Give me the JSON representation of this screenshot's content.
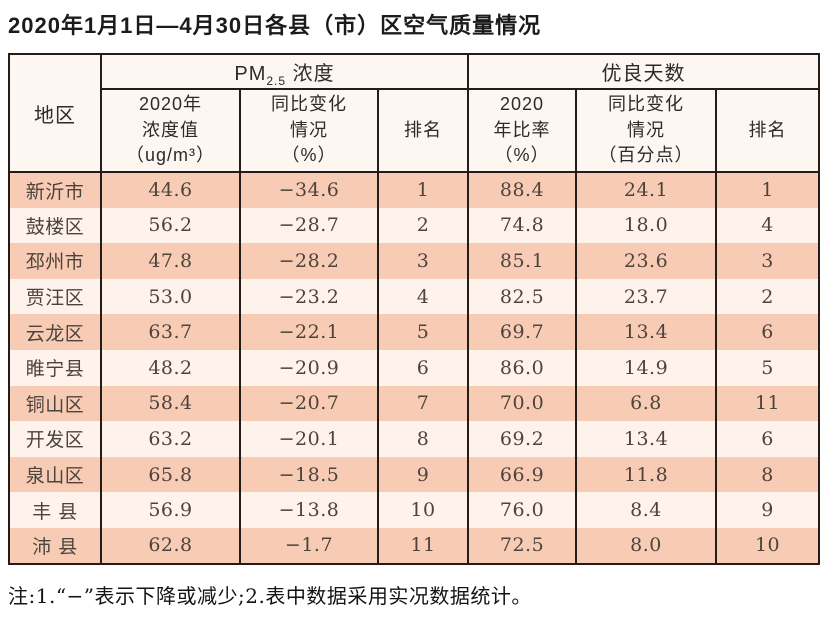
{
  "title": "2020年1月1日—4月30日各县（市）区空气质量情况",
  "footnote": "注:1.“−”表示下降或减少;2.表中数据采用实况数据统计。",
  "colors": {
    "border": "#241c18",
    "stripe_peach": "#f8ccb4",
    "stripe_cream": "#fdf3ec",
    "header_bg": "#fdf6f1",
    "cell_text": "#4d433d"
  },
  "table": {
    "region_header": "地区",
    "pm_group": {
      "prefix": "PM",
      "sub": "2.5",
      "suffix": " 浓度"
    },
    "good_group": "优良天数",
    "subheaders": {
      "pm_value": "2020年\n浓度值\n（ug/m³）",
      "pm_change": "同比变化\n情况\n（%）",
      "pm_rank": "排名",
      "good_ratio": "2020\n年比率\n（%）",
      "good_change": "同比变化\n情况\n（百分点）",
      "good_rank": "排名"
    },
    "column_keys": [
      "region",
      "pm_value",
      "pm_change",
      "pm_rank",
      "good_ratio",
      "good_change",
      "good_rank"
    ],
    "rows": [
      {
        "region": "新沂市",
        "pm_value": "44.6",
        "pm_change": "−34.6",
        "pm_rank": "1",
        "good_ratio": "88.4",
        "good_change": "24.1",
        "good_rank": "1"
      },
      {
        "region": "鼓楼区",
        "pm_value": "56.2",
        "pm_change": "−28.7",
        "pm_rank": "2",
        "good_ratio": "74.8",
        "good_change": "18.0",
        "good_rank": "4"
      },
      {
        "region": "邳州市",
        "pm_value": "47.8",
        "pm_change": "−28.2",
        "pm_rank": "3",
        "good_ratio": "85.1",
        "good_change": "23.6",
        "good_rank": "3"
      },
      {
        "region": "贾汪区",
        "pm_value": "53.0",
        "pm_change": "−23.2",
        "pm_rank": "4",
        "good_ratio": "82.5",
        "good_change": "23.7",
        "good_rank": "2"
      },
      {
        "region": "云龙区",
        "pm_value": "63.7",
        "pm_change": "−22.1",
        "pm_rank": "5",
        "good_ratio": "69.7",
        "good_change": "13.4",
        "good_rank": "6"
      },
      {
        "region": "睢宁县",
        "pm_value": "48.2",
        "pm_change": "−20.9",
        "pm_rank": "6",
        "good_ratio": "86.0",
        "good_change": "14.9",
        "good_rank": "5"
      },
      {
        "region": "铜山区",
        "pm_value": "58.4",
        "pm_change": "−20.7",
        "pm_rank": "7",
        "good_ratio": "70.0",
        "good_change": "6.8",
        "good_rank": "11"
      },
      {
        "region": "开发区",
        "pm_value": "63.2",
        "pm_change": "−20.1",
        "pm_rank": "8",
        "good_ratio": "69.2",
        "good_change": "13.4",
        "good_rank": "6"
      },
      {
        "region": "泉山区",
        "pm_value": "65.8",
        "pm_change": "−18.5",
        "pm_rank": "9",
        "good_ratio": "66.9",
        "good_change": "11.8",
        "good_rank": "8"
      },
      {
        "region": "丰 县",
        "pm_value": "56.9",
        "pm_change": "−13.8",
        "pm_rank": "10",
        "good_ratio": "76.0",
        "good_change": "8.4",
        "good_rank": "9"
      },
      {
        "region": "沛 县",
        "pm_value": "62.8",
        "pm_change": "−1.7",
        "pm_rank": "11",
        "good_ratio": "72.5",
        "good_change": "8.0",
        "good_rank": "10"
      }
    ]
  }
}
